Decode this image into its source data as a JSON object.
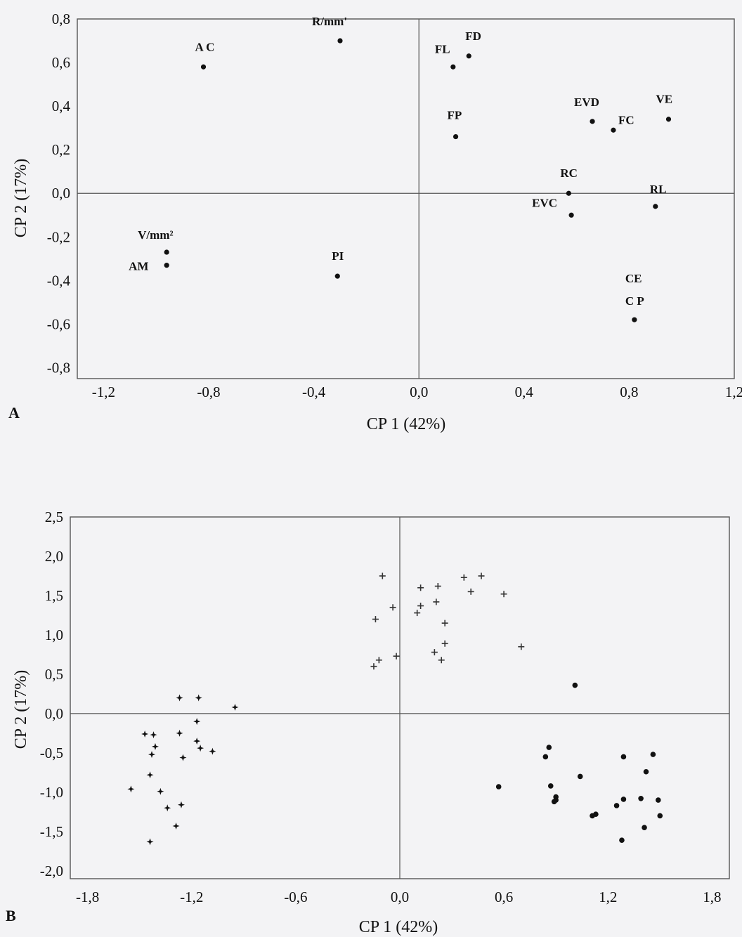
{
  "chart_data": [
    {
      "type": "scatter",
      "panel": "A",
      "xlabel": "CP 1 (42%)",
      "ylabel": "CP 2 (17%)",
      "xlim": [
        -1.3,
        1.2
      ],
      "ylim": [
        -0.85,
        0.8
      ],
      "xticks": [
        "-1,2",
        "-0,8",
        "-0,4",
        "0,0",
        "0,4",
        "0,8",
        "1,2"
      ],
      "yticks": [
        "0,8",
        "0,6",
        "0,4",
        "0,2",
        "0,0",
        "-0,2",
        "-0,4",
        "-0,6",
        "-0,8"
      ],
      "points": [
        {
          "label": "R/mm'",
          "x": -0.3,
          "y": 0.7
        },
        {
          "label": "A C",
          "x": -0.82,
          "y": 0.58
        },
        {
          "label": "FL",
          "x": 0.13,
          "y": 0.58
        },
        {
          "label": "FD",
          "x": 0.19,
          "y": 0.63
        },
        {
          "label": "FP",
          "x": 0.14,
          "y": 0.26
        },
        {
          "label": "EVD",
          "x": 0.66,
          "y": 0.33
        },
        {
          "label": "FC",
          "x": 0.74,
          "y": 0.29
        },
        {
          "label": "VE",
          "x": 0.95,
          "y": 0.34
        },
        {
          "label": "RC",
          "x": 0.57,
          "y": 0.0
        },
        {
          "label": "RL",
          "x": 0.9,
          "y": -0.06
        },
        {
          "label": "EVC",
          "x": 0.58,
          "y": -0.1
        },
        {
          "label": "V/mm²",
          "x": -0.96,
          "y": -0.27
        },
        {
          "label": "AM",
          "x": -0.96,
          "y": -0.33
        },
        {
          "label": "PI",
          "x": -0.31,
          "y": -0.38
        },
        {
          "label": "CE",
          "x": 0.82,
          "y": -0.58
        },
        {
          "label": "C P",
          "x": 0.82,
          "y": -0.58
        }
      ]
    },
    {
      "type": "scatter",
      "panel": "B",
      "xlabel": "CP 1 (42%)",
      "ylabel": "CP 2 (17%)",
      "xlim": [
        -1.9,
        1.9
      ],
      "ylim": [
        -2.1,
        2.5
      ],
      "xticks": [
        "-1,8",
        "-1,2",
        "-0,6",
        "0,0",
        "0,6",
        "1,2",
        "1,8"
      ],
      "yticks": [
        "2,5",
        "2,0",
        "1,5",
        "1,0",
        "0,5",
        "0,0",
        "-0,5",
        "-1,0",
        "-1,5",
        "-2,0"
      ],
      "series": [
        {
          "marker": "plus",
          "points": [
            [
              -0.1,
              1.75
            ],
            [
              0.12,
              1.6
            ],
            [
              0.22,
              1.62
            ],
            [
              0.37,
              1.73
            ],
            [
              0.47,
              1.75
            ],
            [
              0.41,
              1.55
            ],
            [
              0.6,
              1.52
            ],
            [
              -0.04,
              1.35
            ],
            [
              0.12,
              1.37
            ],
            [
              0.21,
              1.42
            ],
            [
              -0.14,
              1.2
            ],
            [
              0.1,
              1.28
            ],
            [
              0.26,
              1.15
            ],
            [
              0.26,
              0.89
            ],
            [
              0.2,
              0.78
            ],
            [
              0.24,
              0.68
            ],
            [
              0.7,
              0.85
            ],
            [
              -0.02,
              0.73
            ],
            [
              -0.12,
              0.68
            ],
            [
              -0.15,
              0.6
            ]
          ]
        },
        {
          "marker": "star",
          "points": [
            [
              -1.27,
              0.2
            ],
            [
              -1.16,
              0.2
            ],
            [
              -0.95,
              0.08
            ],
            [
              -1.17,
              -0.1
            ],
            [
              -1.27,
              -0.25
            ],
            [
              -1.17,
              -0.35
            ],
            [
              -1.15,
              -0.44
            ],
            [
              -1.08,
              -0.48
            ],
            [
              -1.47,
              -0.26
            ],
            [
              -1.42,
              -0.27
            ],
            [
              -1.41,
              -0.42
            ],
            [
              -1.43,
              -0.52
            ],
            [
              -1.25,
              -0.56
            ],
            [
              -1.44,
              -0.78
            ],
            [
              -1.55,
              -0.96
            ],
            [
              -1.38,
              -0.99
            ],
            [
              -1.34,
              -1.2
            ],
            [
              -1.26,
              -1.16
            ],
            [
              -1.29,
              -1.43
            ],
            [
              -1.44,
              -1.63
            ]
          ]
        },
        {
          "marker": "dot",
          "points": [
            [
              1.01,
              0.36
            ],
            [
              0.86,
              -0.43
            ],
            [
              0.84,
              -0.55
            ],
            [
              1.29,
              -0.55
            ],
            [
              1.46,
              -0.52
            ],
            [
              1.42,
              -0.74
            ],
            [
              0.57,
              -0.93
            ],
            [
              0.87,
              -0.92
            ],
            [
              1.04,
              -0.8
            ],
            [
              0.9,
              -1.06
            ],
            [
              0.9,
              -1.1
            ],
            [
              0.89,
              -1.12
            ],
            [
              1.29,
              -1.09
            ],
            [
              1.39,
              -1.08
            ],
            [
              1.49,
              -1.1
            ],
            [
              1.25,
              -1.17
            ],
            [
              1.13,
              -1.28
            ],
            [
              1.11,
              -1.3
            ],
            [
              1.5,
              -1.3
            ],
            [
              1.41,
              -1.45
            ],
            [
              1.28,
              -1.61
            ]
          ]
        }
      ]
    }
  ]
}
